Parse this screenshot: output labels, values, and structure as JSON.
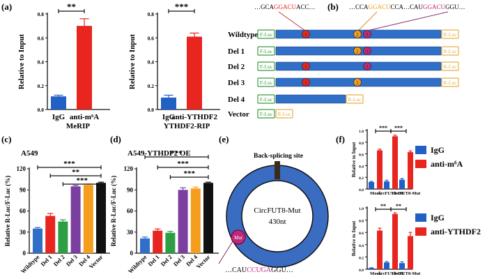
{
  "panels": {
    "a": "(a)",
    "b": "(b)",
    "c": "(c)",
    "d": "(d)",
    "e": "(e)",
    "f": "(f)"
  },
  "colors": {
    "igg": "#2160c4",
    "anti": "#e8251f",
    "del2": "#2e9e45",
    "del3": "#7b3fa0",
    "del4": "#f59d1c",
    "vector": "#111111",
    "wildtype": "#2f6fc7",
    "luc_box": "#3c9a3c",
    "rluc_box": "#e3b04a",
    "ring": "#3a6cc2",
    "motif": "#c0297a"
  },
  "chart_data": [
    {
      "id": "a-merip",
      "type": "bar",
      "ylabel": "Relative to Input",
      "categories": [
        "IgG",
        "anti-m⁶A"
      ],
      "values": [
        0.11,
        0.7
      ],
      "errors": [
        0.01,
        0.06
      ],
      "ylim": [
        0,
        0.8
      ],
      "yticks": [
        "0.0",
        "0.2",
        "0.4",
        "0.6",
        "0.8"
      ],
      "xlabel": "MeRIP",
      "significance": "**"
    },
    {
      "id": "a-ythdf2",
      "type": "bar",
      "ylabel": "Relative to Input",
      "categories": [
        "IgG",
        "anti-YTHDF2"
      ],
      "values": [
        0.1,
        0.61
      ],
      "errors": [
        0.02,
        0.03
      ],
      "ylim": [
        0,
        0.8
      ],
      "yticks": [
        "0.0",
        "0.2",
        "0.4",
        "0.6",
        "0.8"
      ],
      "xlabel": "YTHDF2-RIP",
      "significance": "***"
    },
    {
      "id": "c-a549",
      "type": "bar",
      "title": "A549",
      "ylabel": "Relative R-Luc/F-Luc (%)",
      "categories": [
        "Wildtype",
        "Del 1",
        "Del 2",
        "Del 3",
        "Del 4",
        "Vector"
      ],
      "values": [
        35,
        53,
        45,
        95,
        97,
        100
      ],
      "errors": [
        1.5,
        3.5,
        2.5,
        1.5,
        1.5,
        1
      ],
      "ylim": [
        0,
        120
      ],
      "yticks": [
        "0",
        "30",
        "60",
        "90",
        "120"
      ],
      "significance": [
        "***",
        "**",
        "***"
      ]
    },
    {
      "id": "d-a549-oe",
      "type": "bar",
      "title": "A549-YTHDF2 OE",
      "ylabel": "Relative R-Luc/F-Luc (%)",
      "categories": [
        "Wildtype",
        "Del 1",
        "Del 2",
        "Del 3",
        "Del 4",
        "Vector"
      ],
      "values": [
        21,
        32,
        29,
        90,
        92,
        100
      ],
      "errors": [
        2,
        2.5,
        2,
        3,
        2,
        1
      ],
      "ylim": [
        0,
        120
      ],
      "yticks": [
        "0",
        "30",
        "60",
        "90",
        "120"
      ],
      "significance": [
        "***",
        "***",
        "***"
      ]
    },
    {
      "id": "f-m6a",
      "type": "bar",
      "ylabel": "Relative to Input",
      "categories": [
        "Mock",
        "circFUT8-OE",
        "circFUT8-Mut"
      ],
      "series": [
        {
          "name": "IgG",
          "values": [
            0.12,
            0.13,
            0.16
          ],
          "errors": [
            0.01,
            0.02,
            0.02
          ]
        },
        {
          "name": "anti-m⁶A",
          "values": [
            0.66,
            0.9,
            0.63
          ],
          "errors": [
            0.02,
            0.02,
            0.02
          ]
        }
      ],
      "ylim": [
        0,
        1.0
      ],
      "yticks": [
        "0.0",
        "0.2",
        "0.4",
        "0.6",
        "0.8",
        "1.0"
      ],
      "significance": [
        "***",
        "***"
      ]
    },
    {
      "id": "f-ythdf2",
      "type": "bar",
      "ylabel": "Relative to Input",
      "categories": [
        "Mock",
        "circFUT8-OE",
        "circFUT8-Mut"
      ],
      "series": [
        {
          "name": "IgG",
          "values": [
            0.02,
            0.11,
            0.1
          ],
          "errors": [
            0.005,
            0.015,
            0.02
          ]
        },
        {
          "name": "anti-YTHDF2",
          "values": [
            0.63,
            0.9,
            0.54
          ],
          "errors": [
            0.04,
            0.02,
            0.06
          ]
        }
      ],
      "ylim": [
        0,
        1.0
      ],
      "yticks": [
        "0.0",
        "0.2",
        "0.4",
        "0.6",
        "0.8",
        "1.0"
      ],
      "significance": [
        "**",
        "**"
      ]
    }
  ],
  "legend_f1": {
    "igg": "IgG",
    "anti": "anti-m⁶A"
  },
  "legend_f2": {
    "igg": "IgG",
    "anti": "anti-YTHDF2"
  },
  "panel_b": {
    "seq1": {
      "pre": "…GCA",
      "motif": "GGACU",
      "post": "ACC…"
    },
    "seq2": {
      "pre": "…CCA",
      "motif1": "GGACU",
      "mid": "CCA…CAU",
      "motif2": "GGACU",
      "post": "GGU…"
    },
    "f_luc": "F-Luc",
    "r_luc": "R-Luc",
    "constructs": [
      {
        "label": "Wildtype",
        "sites": [
          "1",
          "2",
          "3"
        ]
      },
      {
        "label": "Del 1",
        "sites": [
          "2",
          "3"
        ]
      },
      {
        "label": "Del 2",
        "sites": [
          "1",
          "3"
        ]
      },
      {
        "label": "Del 3",
        "sites": [
          "1",
          "2"
        ]
      },
      {
        "label": "Del 4",
        "sites": []
      },
      {
        "label": "Vector",
        "sites": []
      }
    ]
  },
  "panel_e": {
    "backsplice": "Back-splicing site",
    "name": "CircFUT8-Mut",
    "length": "430nt",
    "site_label": "Mut",
    "seq": {
      "pre": "…CAU",
      "motif": "CCUGA",
      "post": "GGU…"
    }
  }
}
